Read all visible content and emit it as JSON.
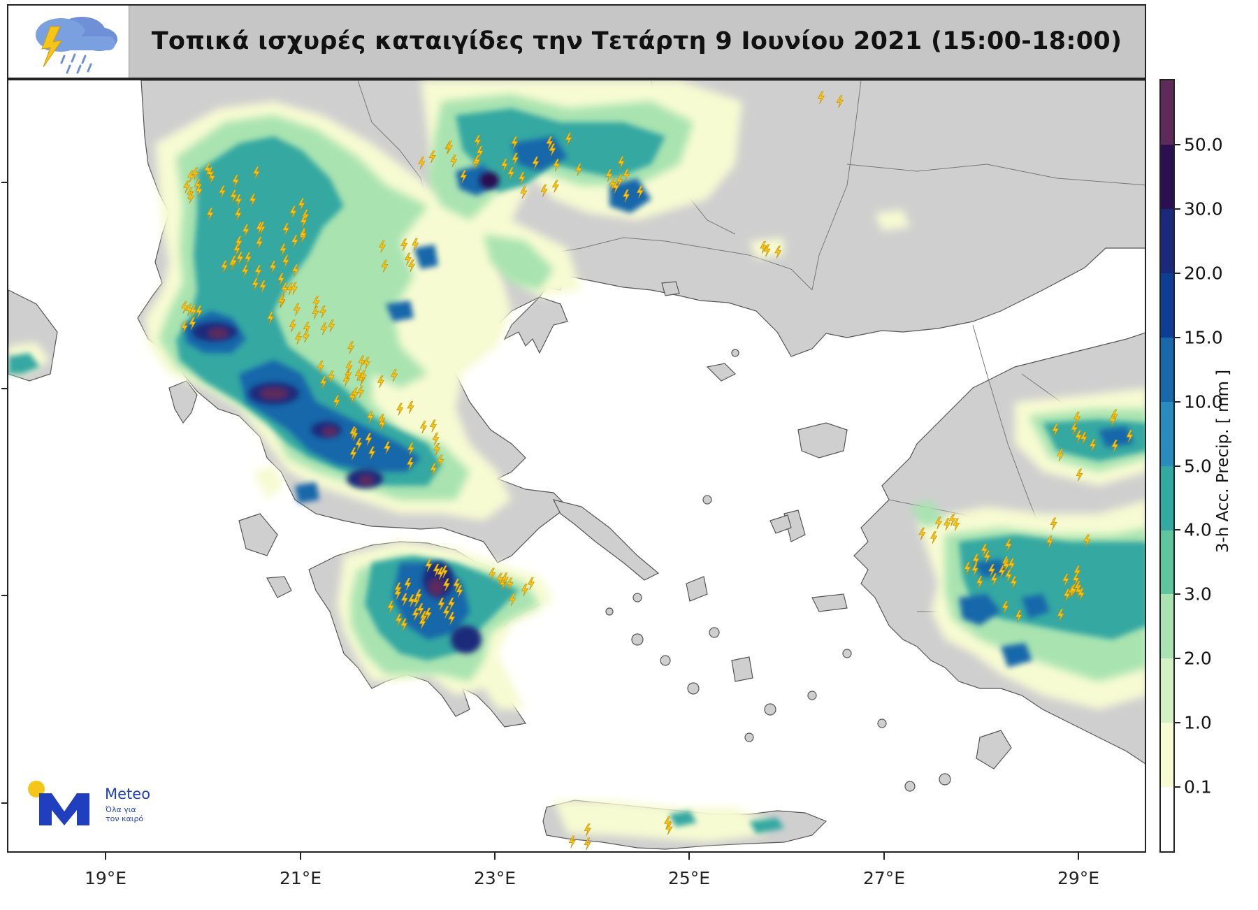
{
  "title": "Τοπικά ισχυρές καταιγίδες την Τετάρτη 9 Ιουνίου 2021 (15:00-18:00)",
  "header_icon": "thunderstorm-cloud-icon",
  "x_axis": {
    "ticks": [
      "19°E",
      "21°E",
      "23°E",
      "25°E",
      "27°E",
      "29°E"
    ]
  },
  "colorbar": {
    "title": "3-h Acc. Precip. [ mm ]",
    "levels": [
      "0.1",
      "1.0",
      "2.0",
      "3.0",
      "4.0",
      "5.0",
      "10.0",
      "15.0",
      "20.0",
      "30.0",
      "50.0"
    ],
    "colors": [
      "#ffffff",
      "#f7fbd2",
      "#d3f1c2",
      "#a8e3b0",
      "#5fc59f",
      "#34a8a2",
      "#2a8cbd",
      "#1868aa",
      "#0c3f93",
      "#1a2a7a",
      "#2a1050",
      "#5e2a5a"
    ]
  },
  "map_colors": {
    "sea": "#ffffff",
    "land": "#cfcfcf",
    "lightning": "#f5c518"
  },
  "logo": {
    "name": "Meteo",
    "tagline_1": "Όλα για",
    "tagline_2": "τον καιρό"
  }
}
